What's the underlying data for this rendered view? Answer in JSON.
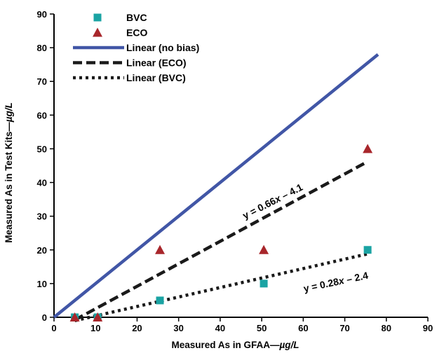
{
  "chart_data": {
    "type": "scatter",
    "xlabel": "Measured As in GFAA—µg/L",
    "ylabel": "Measured As in Test Kits—µg/L",
    "xlabel_parts": [
      "Measured As in GFAA—",
      "µg/L"
    ],
    "ylabel_parts": [
      "Measured As in Test Kits—",
      "µg/L"
    ],
    "xlim": [
      0,
      90
    ],
    "ylim": [
      0,
      90
    ],
    "xticks": [
      0,
      10,
      20,
      30,
      40,
      50,
      60,
      70,
      80,
      90
    ],
    "yticks": [
      0,
      10,
      20,
      30,
      40,
      50,
      60,
      70,
      80,
      90
    ],
    "grid": false,
    "legend_position": "top-left",
    "series": [
      {
        "name": "BVC",
        "kind": "points",
        "marker": "square",
        "color": "#1aa3a3",
        "x": [
          5,
          10.5,
          25.5,
          50.5,
          75.5
        ],
        "y": [
          0,
          0,
          5,
          10,
          20
        ]
      },
      {
        "name": "ECO",
        "kind": "points",
        "marker": "triangle",
        "color": "#a8262b",
        "x": [
          5,
          10.5,
          25.5,
          50.5,
          75.5
        ],
        "y": [
          0,
          0,
          20,
          20,
          50
        ]
      },
      {
        "name": "Linear (no bias)",
        "kind": "line",
        "style": "solid",
        "color": "#4156a6",
        "x": [
          0,
          78
        ],
        "y": [
          0,
          78
        ]
      },
      {
        "name": "Linear (ECO)",
        "kind": "line",
        "style": "dashed",
        "color": "#1a1a1a",
        "x": [
          5,
          75.5
        ],
        "y": [
          -0.8,
          46.2
        ]
      },
      {
        "name": "Linear (BVC)",
        "kind": "line",
        "style": "dotted",
        "color": "#1a1a1a",
        "x": [
          5,
          75.5
        ],
        "y": [
          -1.0,
          18.8
        ]
      }
    ],
    "annotations": [
      {
        "id": "eco_eq",
        "text": "y = 0.66x – 4.1",
        "parts": [
          "y = 0.66",
          "x",
          " – 4.1"
        ],
        "x": 53,
        "y": 33.5,
        "angle": -27
      },
      {
        "id": "bvc_eq",
        "text": "y = 0.28x – 2.4",
        "parts": [
          "y = 0.28",
          "x",
          " – 2.4"
        ],
        "x": 68,
        "y": 9.5,
        "angle": -12
      }
    ]
  }
}
